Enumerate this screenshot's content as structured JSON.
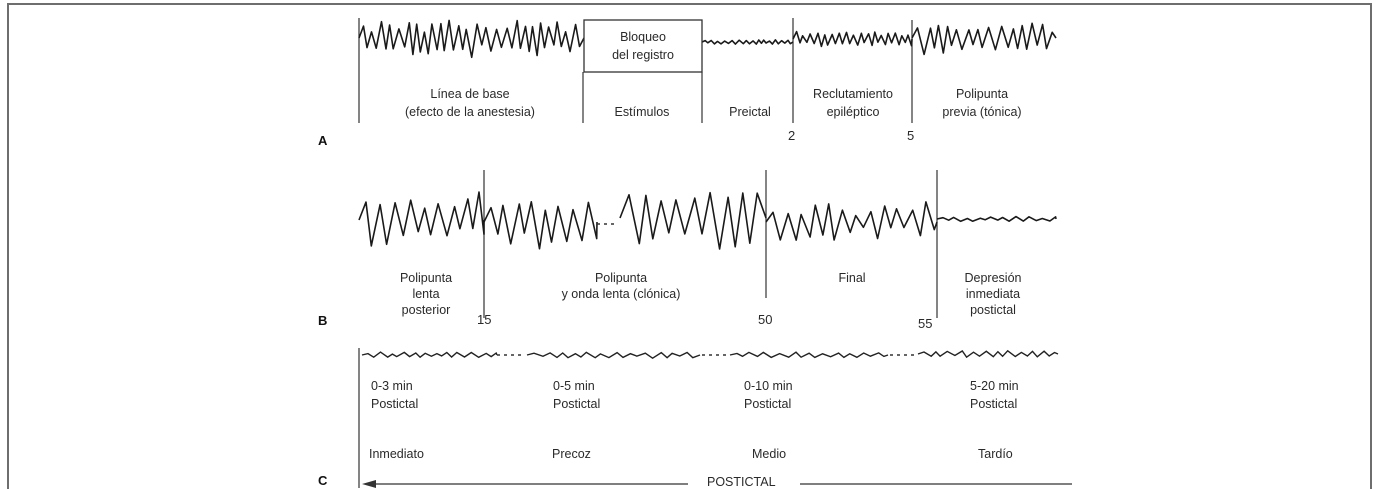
{
  "panels": {
    "a": {
      "letter": "A",
      "box_label": [
        "Bloqueo",
        "del registro"
      ],
      "segments": [
        [
          "Línea de base",
          "(efecto de la anestesia)"
        ],
        [
          "Estímulos"
        ],
        [
          "Preictal"
        ],
        [
          "Reclutamiento",
          "epiléptico"
        ],
        [
          "Polipunta",
          "previa (tónica)"
        ]
      ],
      "ticks": [
        "2",
        "5"
      ]
    },
    "b": {
      "letter": "B",
      "segments": [
        [
          "Polipunta",
          "lenta",
          "posterior"
        ],
        [
          "Polipunta",
          "y onda lenta (clónica)"
        ],
        [
          "Final"
        ],
        [
          "Depresión",
          "inmediata",
          "postictal"
        ]
      ],
      "ticks": [
        "15",
        "50",
        "55"
      ]
    },
    "c": {
      "letter": "C",
      "durations": [
        [
          "0-3 min",
          "Postictal"
        ],
        [
          "0-5 min",
          "Postictal"
        ],
        [
          "0-10 min",
          "Postictal"
        ],
        [
          "5-20 min",
          "Postictal"
        ]
      ],
      "phases": [
        "Inmediato",
        "Precoz",
        "Medio",
        "Tardío"
      ],
      "arrow_label": "POSTICTAL"
    }
  }
}
